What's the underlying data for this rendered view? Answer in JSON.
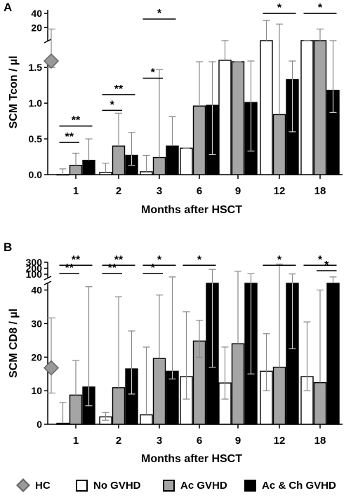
{
  "colors": {
    "HC": "#999999",
    "No GVHD": "#ffffff",
    "Ac GVHD": "#a5a5a5",
    "Ac & Ch GVHD": "#000000"
  },
  "legend": {
    "hc": "HC",
    "no_gvhd": "No GVHD",
    "ac_gvhd": "Ac GVHD",
    "ac_ch_gvhd": "Ac & Ch GVHD"
  },
  "chart_data": [
    {
      "type": "bar",
      "panel": "A",
      "ylabel": "SCM Tcon / µl",
      "xlabel": "Months after HSCT",
      "categories": [
        "1",
        "2",
        "3",
        "6",
        "9",
        "12",
        "18"
      ],
      "y_ticks_lower": [
        "0.0",
        "0.5",
        "1.0",
        "1.5"
      ],
      "y_ticks_upper": [
        "20",
        "40"
      ],
      "ylim_lower": [
        0,
        1.6
      ],
      "ylim_upper": [
        1.6,
        45
      ],
      "series": [
        {
          "name": "No GVHD",
          "values": [
            0.0,
            0.03,
            0.04,
            0.37,
            1.6,
            1.65,
            1.7
          ],
          "err_low": [
            0.0,
            0.0,
            0.0,
            0.0,
            0.0,
            0.0,
            0.0
          ],
          "err_high": [
            0.08,
            0.16,
            0.27,
            0.37,
            1.65,
            30,
            1.8
          ]
        },
        {
          "name": "Ac GVHD",
          "values": [
            0.13,
            0.4,
            0.24,
            0.96,
            1.58,
            0.84,
            1.65
          ],
          "err_low": [
            0.0,
            0.0,
            0.0,
            0.0,
            0.0,
            0.0,
            0.0
          ],
          "err_high": [
            0.3,
            0.86,
            1.47,
            1.58,
            1.58,
            25,
            18
          ]
        },
        {
          "name": "Ac & Ch GVHD",
          "values": [
            0.2,
            0.27,
            0.4,
            0.97,
            1.01,
            1.33,
            1.18
          ],
          "err_low": [
            0.0,
            0.13,
            0.0,
            0.28,
            0.33,
            0.6,
            0.87
          ],
          "err_high": [
            0.5,
            0.59,
            0.81,
            1.58,
            1.59,
            1.59,
            1.66
          ]
        }
      ],
      "hc": {
        "value": 1.59,
        "err_low": 1.5,
        "err_high": 18
      },
      "significance": [
        {
          "label": "**",
          "month": "1",
          "from": "No GVHD",
          "to": "Ac GVHD",
          "level": 0.45
        },
        {
          "label": "**",
          "month": "1",
          "from": "No GVHD",
          "to": "Ac & Ch GVHD",
          "level": 0.68
        },
        {
          "label": "*",
          "month": "2",
          "from": "No GVHD",
          "to": "Ac GVHD",
          "level": 0.9
        },
        {
          "label": "**",
          "month": "2",
          "from": "No GVHD",
          "to": "Ac & Ch GVHD",
          "level": 1.12
        },
        {
          "label": "*",
          "month": "3",
          "from": "No GVHD",
          "to": "Ac GVHD",
          "level": 1.35
        },
        {
          "label": "*",
          "month": "3",
          "from": "No GVHD",
          "to": "Ac & Ch GVHD",
          "level": 32
        },
        {
          "label": "*",
          "month": "12",
          "from": "No GVHD",
          "to": "Ac & Ch GVHD",
          "level": 40
        },
        {
          "label": "*",
          "month": "18",
          "from": "No GVHD",
          "to": "Ac & Ch GVHD",
          "level": 40
        }
      ]
    },
    {
      "type": "bar",
      "panel": "B",
      "ylabel": "SCM CD8 / µl",
      "xlabel": "Months after HSCT",
      "categories": [
        "1",
        "2",
        "3",
        "6",
        "9",
        "12",
        "18"
      ],
      "y_ticks_lower": [
        "0",
        "10",
        "20",
        "30",
        "40"
      ],
      "y_ticks_upper": [
        "100",
        "200",
        "300"
      ],
      "ylim_lower": [
        0,
        42
      ],
      "ylim_upper": [
        42,
        300
      ],
      "series": [
        {
          "name": "No GVHD",
          "values": [
            0.3,
            2.2,
            2.8,
            14.2,
            12.3,
            15.8,
            14.2
          ],
          "err_low": [
            0.0,
            1.2,
            0.0,
            7.5,
            7.5,
            10,
            10
          ],
          "err_high": [
            6.5,
            3.5,
            23,
            33.5,
            23,
            27,
            30.5
          ]
        },
        {
          "name": "Ac GVHD",
          "values": [
            8.7,
            10.9,
            19.6,
            24.8,
            24,
            17,
            12.4
          ],
          "err_low": [
            0.0,
            0.0,
            0.0,
            20,
            0.0,
            0.0,
            0.0
          ],
          "err_high": [
            19,
            38,
            38.5,
            31,
            150,
            270,
            40
          ]
        },
        {
          "name": "Ac & Ch GVHD",
          "values": [
            11.1,
            16.5,
            15.8,
            42,
            42,
            42,
            42
          ],
          "err_low": [
            5.5,
            9,
            13.5,
            17,
            15,
            22.5,
            0.0
          ],
          "err_high": [
            41,
            27.8,
            55,
            180,
            110,
            105,
            55
          ]
        }
      ],
      "hc": {
        "value": 16.8,
        "err_low": 9.3,
        "err_high": 31.7
      },
      "significance": [
        {
          "label": "**",
          "month": "1",
          "from": "No GVHD",
          "to": "Ac GVHD",
          "level": 110
        },
        {
          "label": "**",
          "month": "1",
          "from": "No GVHD",
          "to": "Ac & Ch GVHD",
          "level": 250
        },
        {
          "label": "**",
          "month": "2",
          "from": "No GVHD",
          "to": "Ac GVHD",
          "level": 110
        },
        {
          "label": "**",
          "month": "2",
          "from": "No GVHD",
          "to": "Ac & Ch GVHD",
          "level": 250
        },
        {
          "label": "*",
          "month": "3",
          "from": "No GVHD",
          "to": "Ac GVHD",
          "level": 110
        },
        {
          "label": "*",
          "month": "3",
          "from": "No GVHD",
          "to": "Ac & Ch GVHD",
          "level": 250
        },
        {
          "label": "*",
          "month": "6",
          "from": "No GVHD",
          "to": "Ac & Ch GVHD",
          "level": 250
        },
        {
          "label": "*",
          "month": "12",
          "from": "No GVHD",
          "to": "Ac & Ch GVHD",
          "level": 250
        },
        {
          "label": "*",
          "month": "18",
          "from": "No GVHD",
          "to": "Ac & Ch GVHD",
          "level": 250
        },
        {
          "label": "*",
          "month": "18",
          "from": "Ac GVHD",
          "to": "Ac & Ch GVHD",
          "level": 160
        }
      ]
    }
  ]
}
